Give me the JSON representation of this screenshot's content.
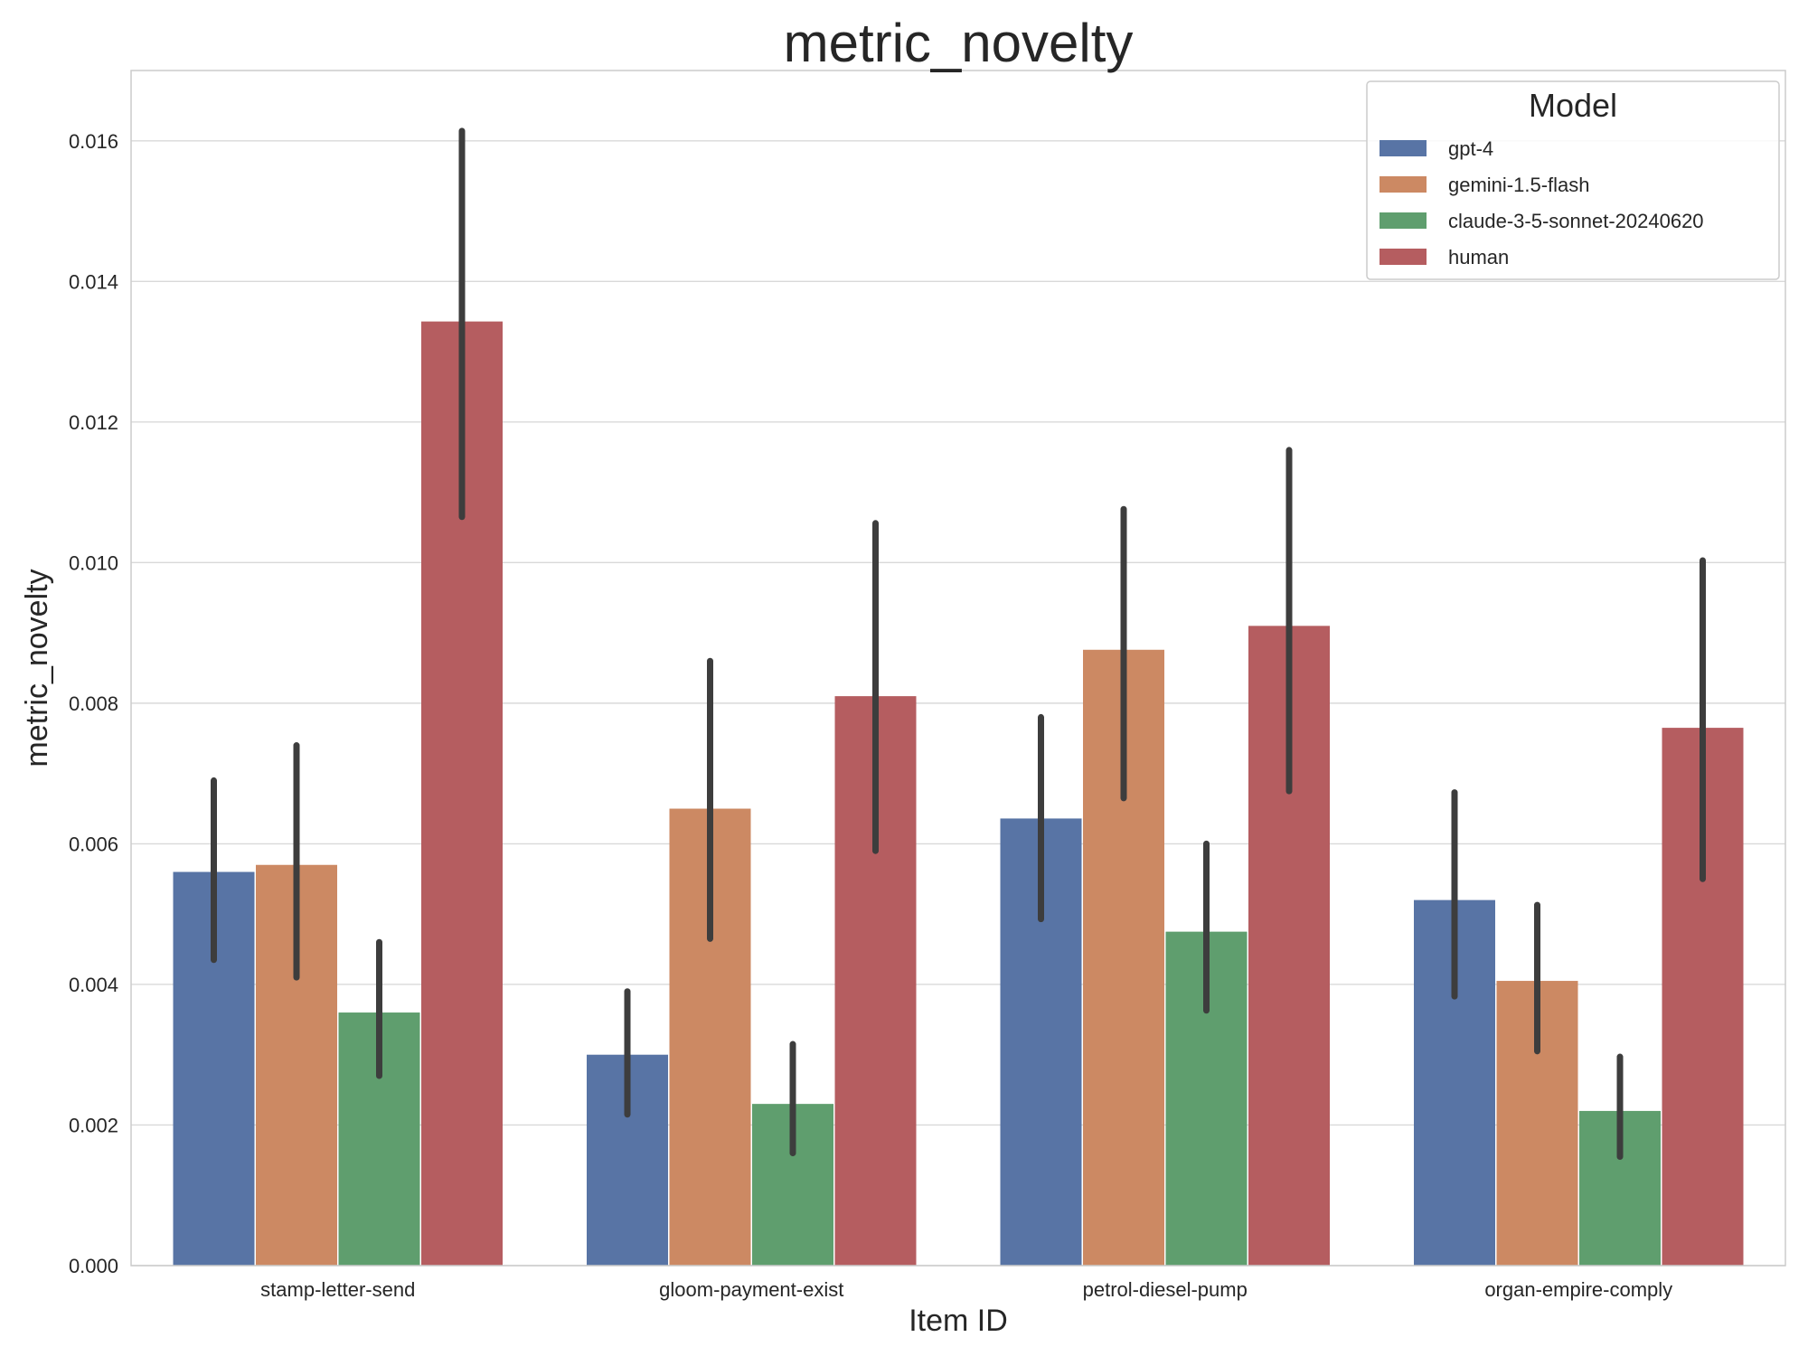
{
  "chart_data": {
    "type": "bar",
    "title": "metric_novelty",
    "xlabel": "Item ID",
    "ylabel": "metric_novelty",
    "ylim": [
      0,
      0.017
    ],
    "yticks": [
      "0.000",
      "0.002",
      "0.004",
      "0.006",
      "0.008",
      "0.010",
      "0.012",
      "0.014",
      "0.016"
    ],
    "grid": true,
    "categories": [
      "stamp-letter-send",
      "gloom-payment-exist",
      "petrol-diesel-pump",
      "organ-empire-comply"
    ],
    "legend": {
      "title": "Model",
      "placement": "top-right"
    },
    "series": [
      {
        "name": "gpt-4",
        "color": "#5874a5",
        "values": [
          0.0056,
          0.003,
          0.00636,
          0.0052
        ],
        "error_low": [
          0.00435,
          0.00215,
          0.00493,
          0.00383
        ],
        "error_high": [
          0.0069,
          0.0039,
          0.0078,
          0.00673
        ]
      },
      {
        "name": "gemini-1.5-flash",
        "color": "#cc8963",
        "values": [
          0.0057,
          0.0065,
          0.00876,
          0.00405
        ],
        "error_low": [
          0.0041,
          0.00465,
          0.00665,
          0.00305
        ],
        "error_high": [
          0.0074,
          0.0086,
          0.01076,
          0.00513
        ]
      },
      {
        "name": "claude-3-5-sonnet-20240620",
        "color": "#5f9e6e",
        "values": [
          0.0036,
          0.0023,
          0.00475,
          0.0022
        ],
        "error_low": [
          0.0027,
          0.0016,
          0.00363,
          0.00155
        ],
        "error_high": [
          0.0046,
          0.00315,
          0.006,
          0.00297
        ]
      },
      {
        "name": "human",
        "color": "#b55d60",
        "values": [
          0.01343,
          0.0081,
          0.0091,
          0.00765
        ],
        "error_low": [
          0.01065,
          0.0059,
          0.00675,
          0.0055
        ],
        "error_high": [
          0.01614,
          0.01056,
          0.0116,
          0.01003
        ]
      }
    ]
  }
}
